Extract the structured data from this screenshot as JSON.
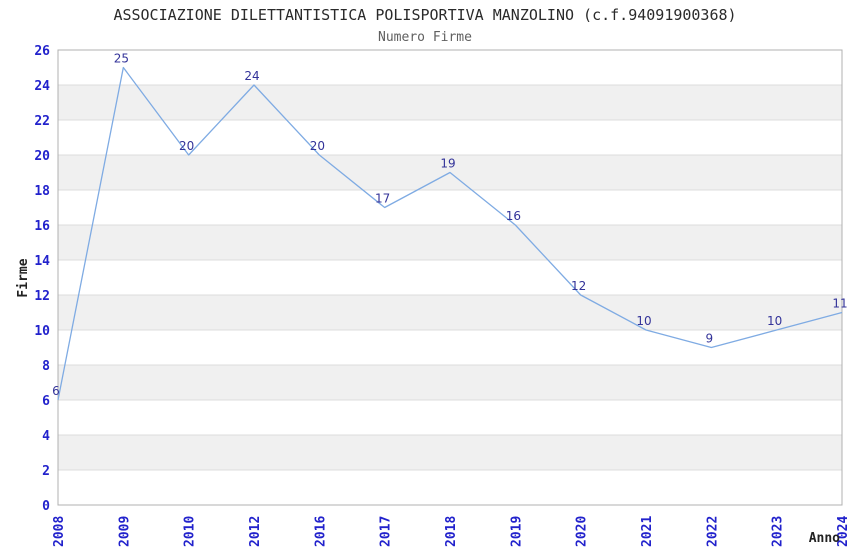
{
  "chart_data": {
    "type": "line",
    "title": "ASSOCIAZIONE DILETTANTISTICA POLISPORTIVA MANZOLINO (c.f.94091900368)",
    "subtitle": "Numero Firme",
    "xlabel": "Anno",
    "ylabel": "Firme",
    "categories": [
      "2008",
      "2009",
      "2010",
      "2012",
      "2016",
      "2017",
      "2018",
      "2019",
      "2020",
      "2021",
      "2022",
      "2023",
      "2024"
    ],
    "values": [
      6,
      25,
      20,
      24,
      20,
      17,
      19,
      16,
      12,
      10,
      9,
      10,
      11
    ],
    "ylim": [
      0,
      26
    ],
    "ytick_step": 2,
    "grid": true,
    "legend": "none",
    "layout_hints": {
      "bands_alternate_every": 2,
      "x_tick_rotation_degrees": -90,
      "point_labels_shown": true
    },
    "colors": {
      "line": "#7fabe3",
      "tick_label": "#2222cc",
      "point_label": "#333399",
      "grid": "#dcdcdc",
      "border": "#b0b0b0",
      "band_white": "#ffffff",
      "band_gray": "#f0f0f0",
      "title": "#2a2a2a",
      "subtitle": "#606060",
      "axis_title": "#222222",
      "background": "#ffffff"
    }
  }
}
